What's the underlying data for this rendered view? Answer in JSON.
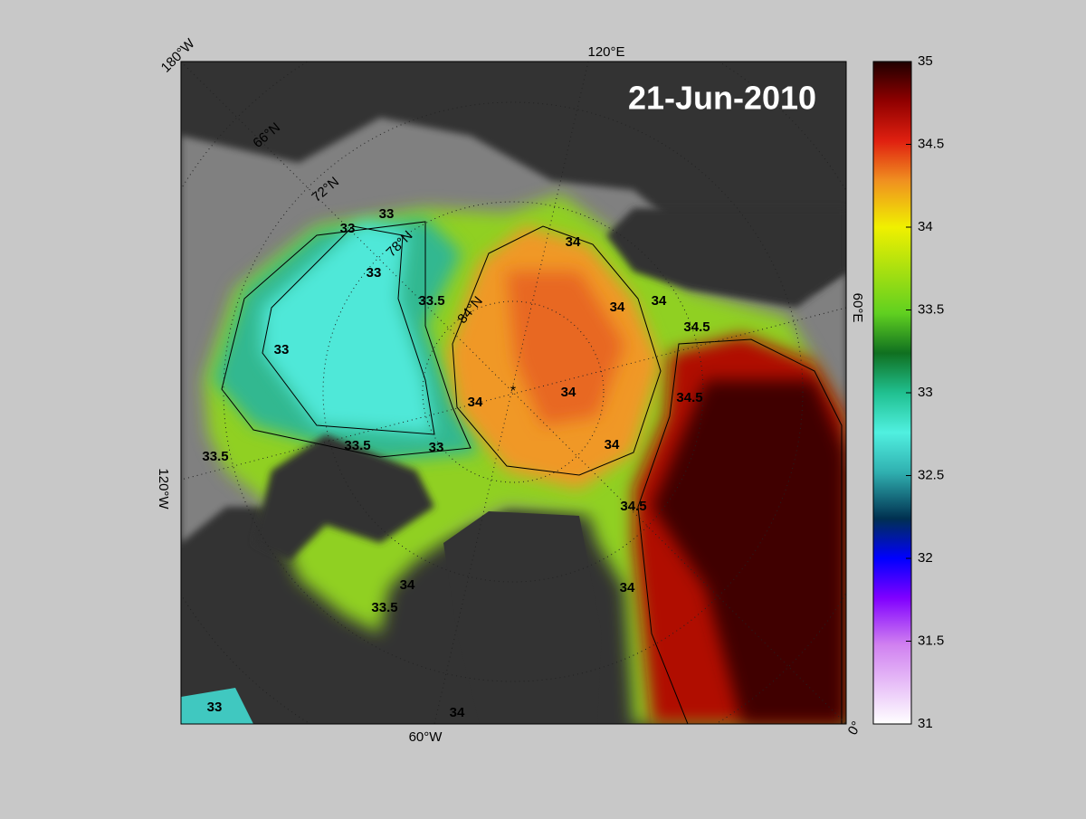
{
  "map": {
    "date": "21-Jun-2010",
    "longitude_labels": [
      "180°W",
      "120°E",
      "60°E",
      "0°",
      "60°W",
      "120°W"
    ],
    "latitude_labels": [
      "66°N",
      "72°N",
      "78°N",
      "84°N"
    ],
    "contour_labels": [
      33,
      33,
      33,
      33,
      33,
      33.5,
      33.5,
      33.5,
      33.5,
      34,
      34,
      34,
      34,
      34,
      34,
      34,
      34,
      34,
      34.5,
      34.5,
      34.5,
      33
    ]
  },
  "colorbar": {
    "range": [
      31,
      35
    ],
    "ticks": [
      31,
      31.5,
      32,
      32.5,
      33,
      33.5,
      34,
      34.5,
      35
    ]
  }
}
